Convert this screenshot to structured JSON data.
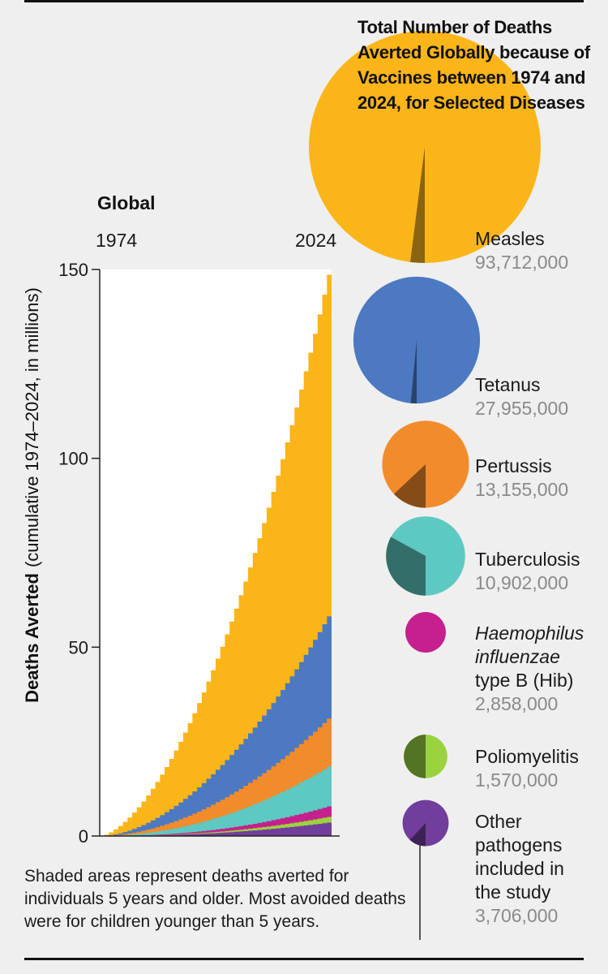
{
  "chart_data": [
    {
      "type": "area",
      "title": "Global",
      "xlabel": "",
      "ylabel_bold": "Deaths Averted",
      "ylabel_rest": "(cumulative 1974–2024, in millions)",
      "x_start_label": "1974",
      "x_end_label": "2024",
      "xlim": [
        1974,
        2024
      ],
      "ylim": [
        0,
        150
      ],
      "yticks": [
        "0",
        "50",
        "100",
        "150"
      ],
      "stacking_order_bottom_to_top": [
        "Other",
        "Poliomyelitis",
        "Hib",
        "Tuberculosis",
        "Pertussis",
        "Tetanus",
        "Measles"
      ],
      "series": [
        {
          "name": "Other",
          "final_value": 3.7
        },
        {
          "name": "Poliomyelitis",
          "final_value": 1.6
        },
        {
          "name": "Hib",
          "final_value": 2.9
        },
        {
          "name": "Tuberculosis",
          "final_value": 10.9
        },
        {
          "name": "Pertussis",
          "final_value": 13.2
        },
        {
          "name": "Tetanus",
          "final_value": 28.0
        },
        {
          "name": "Measles",
          "final_value": 93.7
        }
      ],
      "total_final": 154
    },
    {
      "type": "pie",
      "title": "Total Number of Deaths Averted Globally because of Vaccines between 1974 and 2024, for Selected Diseases",
      "items": [
        {
          "name": "Measles",
          "value": 93712000,
          "label": "93,712,000",
          "shaded_share": 0.02
        },
        {
          "name": "Tetanus",
          "value": 27955000,
          "label": "27,955,000",
          "shaded_share": 0.015
        },
        {
          "name": "Pertussis",
          "value": 13155000,
          "label": "13,155,000",
          "shaded_share": 0.13
        },
        {
          "name": "Tuberculosis",
          "value": 10902000,
          "label": "10,902,000",
          "shaded_share": 0.33
        },
        {
          "name": "Hib",
          "value": 2858000,
          "label": "2,858,000",
          "shaded_share": 0.0
        },
        {
          "name": "Poliomyelitis",
          "value": 1570000,
          "label": "1,570,000",
          "shaded_share": 0.5
        },
        {
          "name": "Other",
          "value": 3706000,
          "label": "3,706,000",
          "shaded_share": 0.12
        }
      ]
    }
  ],
  "colors": {
    "Measles": "#fbb519",
    "Tetanus": "#4c79c1",
    "Pertussis": "#f28b2b",
    "Tuberculosis": "#5ec8c2",
    "Hib": "#c5208e",
    "Poliomyelitis": "#9bd23f",
    "Other": "#713e9c"
  },
  "labels": {
    "title": "Total Number of Deaths Averted Globally because of Vaccines between 1974 and 2024, for Selected Diseases",
    "measles_name": "Measles",
    "measles_value": "93,712,000",
    "tetanus_name": "Tetanus",
    "tetanus_value": "27,955,000",
    "pertussis_name": "Pertussis",
    "pertussis_value": "13,155,000",
    "tb_name": "Tuberculosis",
    "tb_value": "10,902,000",
    "hib_name_1": "Haemophilus",
    "hib_name_2": "influenzae",
    "hib_name_3": "type B (Hib)",
    "hib_value": "2,858,000",
    "polio_name": "Poliomyelitis",
    "polio_value": "1,570,000",
    "other_name_1": "Other",
    "other_name_2": "pathogens",
    "other_name_3": "included in",
    "other_name_4": "the study",
    "other_value": "3,706,000",
    "note": "Shaded areas represent deaths averted for individuals 5 years and older. Most avoided deaths were for children younger than 5 years."
  }
}
